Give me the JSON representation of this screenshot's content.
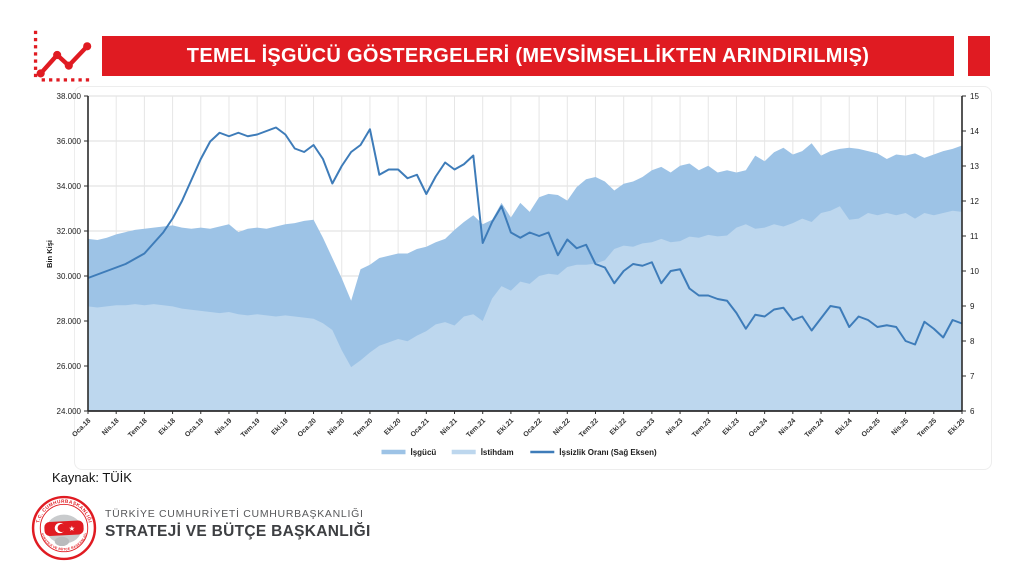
{
  "theme": {
    "accent_red": "#E01B22",
    "area_isgucu": "#9DC3E6",
    "area_istihdam": "#BDD7EE",
    "line_blue": "#3E7CB9",
    "grid": "#DDDDDD",
    "axis": "#2B2B2B"
  },
  "header": {
    "title": "TEMEL İŞGÜCÜ GÖSTERGELERİ (MEVSİMSELLİKTEN ARINDIRILMIŞ)"
  },
  "source": {
    "label": "Kaynak: TÜİK"
  },
  "footer": {
    "org_line1": "TÜRKİYE CUMHURİYETİ CUMHURBAŞKANLIĞI",
    "org_line2": "STRATEJİ VE BÜTÇE BAŞKANLIĞI",
    "seal_text_top": "T.C. CUMHURBAŞKANLIĞI",
    "seal_text_bottom": "STRATEJİ VE BÜTÇE BAŞKANLIĞI"
  },
  "chart_data": {
    "type": "area+line",
    "title": "Temel İşgücü Göstergeleri (Mevsimsellikten Arındırılmış)",
    "x_tick_labels": [
      "Oca.18",
      "Nis.18",
      "Tem.18",
      "Eki.18",
      "Oca.19",
      "Nis.19",
      "Tem.19",
      "Eki.19",
      "Oca.20",
      "Nis.20",
      "Tem.20",
      "Eki.20",
      "Oca.21",
      "Nis.21",
      "Tem.21",
      "Eki.21",
      "Oca.22",
      "Nis.22",
      "Tem.22",
      "Eki.22",
      "Oca.23",
      "Nis.23",
      "Tem.23",
      "Eki.23",
      "Oca.24",
      "Nis.24",
      "Tem.24",
      "Eki.24",
      "Oca.25",
      "Nis.25",
      "Tem.25",
      "Eki.25"
    ],
    "left_axis": {
      "label": "Bin Kişi",
      "min": 24000,
      "max": 38000,
      "step": 2000,
      "ticks": [
        "24.000",
        "26.000",
        "28.000",
        "30.000",
        "32.000",
        "34.000",
        "36.000",
        "38.000"
      ]
    },
    "right_axis": {
      "min": 6,
      "max": 15,
      "step": 1,
      "ticks": [
        "6",
        "7",
        "8",
        "9",
        "10",
        "11",
        "12",
        "13",
        "14",
        "15"
      ]
    },
    "series": [
      {
        "name": "İşgücü",
        "type": "area",
        "axis": "left",
        "color": "#9DC3E6",
        "values": [
          31650,
          31600,
          31700,
          31850,
          31950,
          32050,
          32100,
          32150,
          32200,
          32250,
          32150,
          32100,
          32150,
          32100,
          32200,
          32300,
          31950,
          32100,
          32150,
          32100,
          32200,
          32300,
          32350,
          32450,
          32500,
          31700,
          30800,
          29900,
          28900,
          30300,
          30500,
          30800,
          30900,
          31000,
          31000,
          31200,
          31300,
          31500,
          31650,
          32050,
          32400,
          32700,
          32300,
          32500,
          33250,
          32600,
          33250,
          32850,
          33500,
          33650,
          33600,
          33350,
          33950,
          34300,
          34400,
          34200,
          33800,
          34100,
          34200,
          34400,
          34700,
          34850,
          34600,
          34900,
          35000,
          34700,
          34900,
          34600,
          34700,
          34600,
          34700,
          35350,
          35100,
          35500,
          35700,
          35400,
          35550,
          35900,
          35350,
          35550,
          35650,
          35700,
          35650,
          35550,
          35450,
          35200,
          35400,
          35350,
          35450,
          35250,
          35400,
          35550,
          35650,
          35800
        ]
      },
      {
        "name": "İstihdam",
        "type": "area",
        "axis": "left",
        "color": "#BDD7EE",
        "values": [
          28650,
          28600,
          28650,
          28700,
          28700,
          28750,
          28700,
          28750,
          28700,
          28650,
          28550,
          28500,
          28450,
          28400,
          28350,
          28400,
          28300,
          28250,
          28300,
          28250,
          28200,
          28250,
          28200,
          28150,
          28100,
          27900,
          27600,
          26700,
          25950,
          26250,
          26600,
          26900,
          27050,
          27200,
          27100,
          27350,
          27550,
          27850,
          27950,
          27800,
          28200,
          28300,
          28000,
          29000,
          29550,
          29350,
          29750,
          29650,
          30000,
          30100,
          30050,
          30400,
          30500,
          30500,
          30550,
          30700,
          31200,
          31350,
          31300,
          31450,
          31500,
          31650,
          31500,
          31550,
          31750,
          31700,
          31830,
          31760,
          31800,
          32150,
          32300,
          32100,
          32150,
          32300,
          32200,
          32350,
          32550,
          32400,
          32800,
          32900,
          33100,
          32500,
          32550,
          32800,
          32700,
          32800,
          32700,
          32800,
          32550,
          32800,
          32700,
          32800,
          32900,
          32850
        ]
      },
      {
        "name": "İşsizlik Oranı (Sağ Eksen)",
        "type": "line",
        "axis": "right",
        "color": "#3E7CB9",
        "values": [
          9.8,
          9.9,
          10.0,
          10.1,
          10.2,
          10.35,
          10.5,
          10.8,
          11.1,
          11.5,
          12.0,
          12.6,
          13.2,
          13.7,
          13.95,
          13.85,
          13.95,
          13.85,
          13.9,
          14.0,
          14.1,
          13.9,
          13.5,
          13.4,
          13.6,
          13.2,
          12.5,
          13.0,
          13.4,
          13.6,
          14.05,
          12.75,
          12.9,
          12.9,
          12.65,
          12.75,
          12.2,
          12.7,
          13.1,
          12.9,
          13.05,
          13.3,
          10.8,
          11.4,
          11.85,
          11.1,
          10.95,
          11.1,
          11.0,
          11.1,
          10.45,
          10.9,
          10.65,
          10.75,
          10.2,
          10.1,
          9.65,
          10.0,
          10.2,
          10.15,
          10.25,
          9.65,
          10.0,
          10.05,
          9.5,
          9.3,
          9.3,
          9.2,
          9.15,
          8.8,
          8.35,
          8.75,
          8.7,
          8.9,
          8.95,
          8.6,
          8.7,
          8.3,
          8.65,
          9.0,
          8.95,
          8.4,
          8.7,
          8.6,
          8.4,
          8.45,
          8.4,
          8.0,
          7.9,
          8.55,
          8.35,
          8.1,
          8.6,
          8.5
        ]
      }
    ],
    "legend": {
      "position": "bottom-center",
      "labels": [
        "İşgücü",
        "İstihdam",
        "İşsizlik Oranı (Sağ Eksen)"
      ]
    }
  }
}
